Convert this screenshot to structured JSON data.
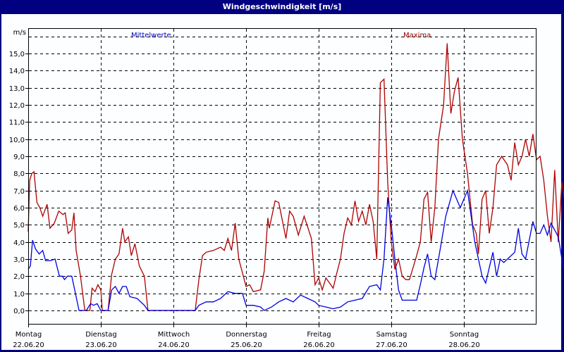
{
  "window": {
    "title": "Windgeschwindigkeit [m/s]"
  },
  "legend": {
    "mean_label": "Mittelwerte",
    "max_label": "Maxima"
  },
  "colors": {
    "mean": "#0000e0",
    "max": "#b00000",
    "background": "#fcfeff",
    "frame": "#000080"
  },
  "chart_data": {
    "type": "line",
    "title": "Windgeschwindigkeit [m/s]",
    "ylabel": "m/s",
    "xlabel": "",
    "ylim": [
      -0.8,
      16.5
    ],
    "yticks": [
      "0,0",
      "1,0",
      "2,0",
      "3,0",
      "4,0",
      "5,0",
      "6,0",
      "7,0",
      "8,0",
      "9,0",
      "10,0",
      "11,0",
      "12,0",
      "13,0",
      "14,0",
      "15,0"
    ],
    "grid": true,
    "legend_position": "top",
    "x_days": [
      {
        "day": "Montag",
        "date": "22.06.20"
      },
      {
        "day": "Dienstag",
        "date": "23.06.20"
      },
      {
        "day": "Mittwoch",
        "date": "24.06.20"
      },
      {
        "day": "Donnerstag",
        "date": "25.06.20"
      },
      {
        "day": "Freitag",
        "date": "26.06.20"
      },
      {
        "day": "Samstag",
        "date": "27.06.20"
      },
      {
        "day": "Sonntag",
        "date": "28.06.20"
      }
    ],
    "x_unit": "days since 22.06.20 00:00",
    "series": [
      {
        "name": "Mittelwerte",
        "points": [
          [
            0,
            2.4
          ],
          [
            0.03,
            2.6
          ],
          [
            0.06,
            4.1
          ],
          [
            0.1,
            3.6
          ],
          [
            0.15,
            3.3
          ],
          [
            0.2,
            3.5
          ],
          [
            0.24,
            2.9
          ],
          [
            0.3,
            2.9
          ],
          [
            0.37,
            3.0
          ],
          [
            0.43,
            2.0
          ],
          [
            0.47,
            2.0
          ],
          [
            0.5,
            1.8
          ],
          [
            0.54,
            2.0
          ],
          [
            0.6,
            2.0
          ],
          [
            0.65,
            1.0
          ],
          [
            0.7,
            0.0
          ],
          [
            0.8,
            0.0
          ],
          [
            0.86,
            0.4
          ],
          [
            0.9,
            0.3
          ],
          [
            0.95,
            0.4
          ],
          [
            1.0,
            0.0
          ],
          [
            1.1,
            0.0
          ],
          [
            1.15,
            1.2
          ],
          [
            1.2,
            1.4
          ],
          [
            1.25,
            1.0
          ],
          [
            1.3,
            1.4
          ],
          [
            1.35,
            1.4
          ],
          [
            1.4,
            0.8
          ],
          [
            1.5,
            0.7
          ],
          [
            1.6,
            0.3
          ],
          [
            1.65,
            0.0
          ],
          [
            1.8,
            0.0
          ],
          [
            2.0,
            0.0
          ],
          [
            2.3,
            0.0
          ],
          [
            2.35,
            0.3
          ],
          [
            2.45,
            0.5
          ],
          [
            2.55,
            0.5
          ],
          [
            2.65,
            0.7
          ],
          [
            2.75,
            1.1
          ],
          [
            2.85,
            1.0
          ],
          [
            2.95,
            1.0
          ],
          [
            3.0,
            0.3
          ],
          [
            3.1,
            0.3
          ],
          [
            3.2,
            0.2
          ],
          [
            3.25,
            0.0
          ],
          [
            3.35,
            0.2
          ],
          [
            3.45,
            0.5
          ],
          [
            3.55,
            0.7
          ],
          [
            3.65,
            0.5
          ],
          [
            3.75,
            0.9
          ],
          [
            3.85,
            0.7
          ],
          [
            3.95,
            0.5
          ],
          [
            4.0,
            0.3
          ],
          [
            4.1,
            0.2
          ],
          [
            4.2,
            0.1
          ],
          [
            4.3,
            0.2
          ],
          [
            4.4,
            0.5
          ],
          [
            4.5,
            0.6
          ],
          [
            4.6,
            0.7
          ],
          [
            4.7,
            1.4
          ],
          [
            4.8,
            1.5
          ],
          [
            4.85,
            1.2
          ],
          [
            4.9,
            3.0
          ],
          [
            4.95,
            6.6
          ],
          [
            5.0,
            5.0
          ],
          [
            5.05,
            3.0
          ],
          [
            5.1,
            1.2
          ],
          [
            5.15,
            0.6
          ],
          [
            5.25,
            0.6
          ],
          [
            5.35,
            0.6
          ],
          [
            5.4,
            1.5
          ],
          [
            5.45,
            2.5
          ],
          [
            5.5,
            3.3
          ],
          [
            5.55,
            2.0
          ],
          [
            5.6,
            1.8
          ],
          [
            5.65,
            3.0
          ],
          [
            5.75,
            5.5
          ],
          [
            5.85,
            7.0
          ],
          [
            5.95,
            6.0
          ],
          [
            6.05,
            7.0
          ],
          [
            6.15,
            4.0
          ],
          [
            6.25,
            2.0
          ],
          [
            6.3,
            1.6
          ],
          [
            6.35,
            2.5
          ],
          [
            6.4,
            3.4
          ],
          [
            6.45,
            2.0
          ],
          [
            6.5,
            3.0
          ],
          [
            6.55,
            2.8
          ],
          [
            6.6,
            3.0
          ],
          [
            6.7,
            3.4
          ],
          [
            6.75,
            4.8
          ],
          [
            6.8,
            3.3
          ],
          [
            6.85,
            3.0
          ],
          [
            6.95,
            5.2
          ],
          [
            7.0,
            4.5
          ],
          [
            7.05,
            4.5
          ],
          [
            7.1,
            5.0
          ],
          [
            7.15,
            4.4
          ],
          [
            7.2,
            5.1
          ],
          [
            7.3,
            4.3
          ],
          [
            7.35,
            3.0
          ],
          [
            7.4,
            2.0
          ],
          [
            7.45,
            2.4
          ],
          [
            7.5,
            2.0
          ],
          [
            7.55,
            2.0
          ]
        ]
      },
      {
        "name": "Maxima",
        "points": [
          [
            0,
            4.6
          ],
          [
            0.02,
            7.6
          ],
          [
            0.05,
            8.0
          ],
          [
            0.08,
            8.1
          ],
          [
            0.12,
            6.3
          ],
          [
            0.16,
            6.0
          ],
          [
            0.2,
            5.5
          ],
          [
            0.26,
            6.2
          ],
          [
            0.3,
            4.8
          ],
          [
            0.36,
            5.1
          ],
          [
            0.42,
            5.8
          ],
          [
            0.48,
            5.6
          ],
          [
            0.51,
            5.7
          ],
          [
            0.55,
            4.5
          ],
          [
            0.6,
            4.7
          ],
          [
            0.63,
            5.7
          ],
          [
            0.66,
            3.5
          ],
          [
            0.72,
            2.0
          ],
          [
            0.78,
            0.0
          ],
          [
            0.85,
            0.0
          ],
          [
            0.88,
            1.3
          ],
          [
            0.92,
            1.1
          ],
          [
            0.96,
            1.5
          ],
          [
            1.0,
            1.2
          ],
          [
            1.02,
            0.0
          ],
          [
            1.1,
            0.0
          ],
          [
            1.15,
            2.1
          ],
          [
            1.2,
            3.0
          ],
          [
            1.25,
            3.3
          ],
          [
            1.3,
            4.8
          ],
          [
            1.33,
            4.0
          ],
          [
            1.38,
            4.3
          ],
          [
            1.42,
            3.2
          ],
          [
            1.47,
            3.9
          ],
          [
            1.53,
            2.6
          ],
          [
            1.6,
            2.0
          ],
          [
            1.65,
            0.0
          ],
          [
            1.8,
            0.0
          ],
          [
            2.0,
            0.0
          ],
          [
            2.3,
            0.0
          ],
          [
            2.35,
            1.8
          ],
          [
            2.4,
            3.2
          ],
          [
            2.45,
            3.4
          ],
          [
            2.55,
            3.5
          ],
          [
            2.65,
            3.7
          ],
          [
            2.7,
            3.5
          ],
          [
            2.75,
            4.2
          ],
          [
            2.8,
            3.5
          ],
          [
            2.85,
            5.1
          ],
          [
            2.9,
            3.0
          ],
          [
            2.95,
            2.2
          ],
          [
            3.0,
            1.4
          ],
          [
            3.05,
            1.5
          ],
          [
            3.1,
            1.1
          ],
          [
            3.2,
            1.2
          ],
          [
            3.25,
            2.3
          ],
          [
            3.3,
            5.4
          ],
          [
            3.32,
            4.8
          ],
          [
            3.4,
            6.4
          ],
          [
            3.45,
            6.3
          ],
          [
            3.55,
            4.2
          ],
          [
            3.6,
            5.8
          ],
          [
            3.65,
            5.5
          ],
          [
            3.72,
            4.4
          ],
          [
            3.8,
            5.5
          ],
          [
            3.9,
            4.2
          ],
          [
            3.95,
            1.5
          ],
          [
            4.0,
            1.9
          ],
          [
            4.05,
            1.2
          ],
          [
            4.1,
            1.9
          ],
          [
            4.15,
            1.6
          ],
          [
            4.2,
            1.3
          ],
          [
            4.25,
            2.2
          ],
          [
            4.3,
            3.0
          ],
          [
            4.35,
            4.5
          ],
          [
            4.4,
            5.4
          ],
          [
            4.45,
            5.0
          ],
          [
            4.5,
            6.4
          ],
          [
            4.55,
            5.2
          ],
          [
            4.6,
            5.8
          ],
          [
            4.65,
            5.0
          ],
          [
            4.7,
            6.2
          ],
          [
            4.75,
            5.2
          ],
          [
            4.8,
            3.0
          ],
          [
            4.85,
            13.3
          ],
          [
            4.9,
            13.5
          ],
          [
            4.95,
            7.5
          ],
          [
            5.0,
            4.0
          ],
          [
            5.05,
            2.4
          ],
          [
            5.1,
            3.0
          ],
          [
            5.15,
            2.0
          ],
          [
            5.2,
            1.8
          ],
          [
            5.25,
            1.8
          ],
          [
            5.35,
            3.2
          ],
          [
            5.4,
            4.0
          ],
          [
            5.45,
            6.5
          ],
          [
            5.5,
            6.9
          ],
          [
            5.55,
            4.0
          ],
          [
            5.6,
            6.0
          ],
          [
            5.65,
            10.0
          ],
          [
            5.72,
            12.0
          ],
          [
            5.77,
            15.6
          ],
          [
            5.82,
            11.5
          ],
          [
            5.87,
            12.8
          ],
          [
            5.92,
            13.6
          ],
          [
            5.98,
            10.0
          ],
          [
            6.05,
            8.0
          ],
          [
            6.12,
            5.0
          ],
          [
            6.17,
            4.5
          ],
          [
            6.2,
            3.3
          ],
          [
            6.25,
            6.5
          ],
          [
            6.3,
            7.0
          ],
          [
            6.35,
            4.5
          ],
          [
            6.4,
            6.0
          ],
          [
            6.45,
            8.5
          ],
          [
            6.52,
            9.0
          ],
          [
            6.6,
            8.5
          ],
          [
            6.65,
            7.6
          ],
          [
            6.7,
            9.8
          ],
          [
            6.75,
            8.5
          ],
          [
            6.8,
            9.0
          ],
          [
            6.85,
            10.0
          ],
          [
            6.9,
            9.0
          ],
          [
            6.95,
            10.3
          ],
          [
            7.0,
            8.8
          ],
          [
            7.05,
            9.0
          ],
          [
            7.1,
            7.6
          ],
          [
            7.15,
            5.5
          ],
          [
            7.2,
            4.0
          ],
          [
            7.25,
            8.2
          ],
          [
            7.3,
            4.0
          ],
          [
            7.35,
            7.5
          ],
          [
            7.4,
            6.0
          ],
          [
            7.45,
            8.0
          ]
        ]
      }
    ]
  }
}
